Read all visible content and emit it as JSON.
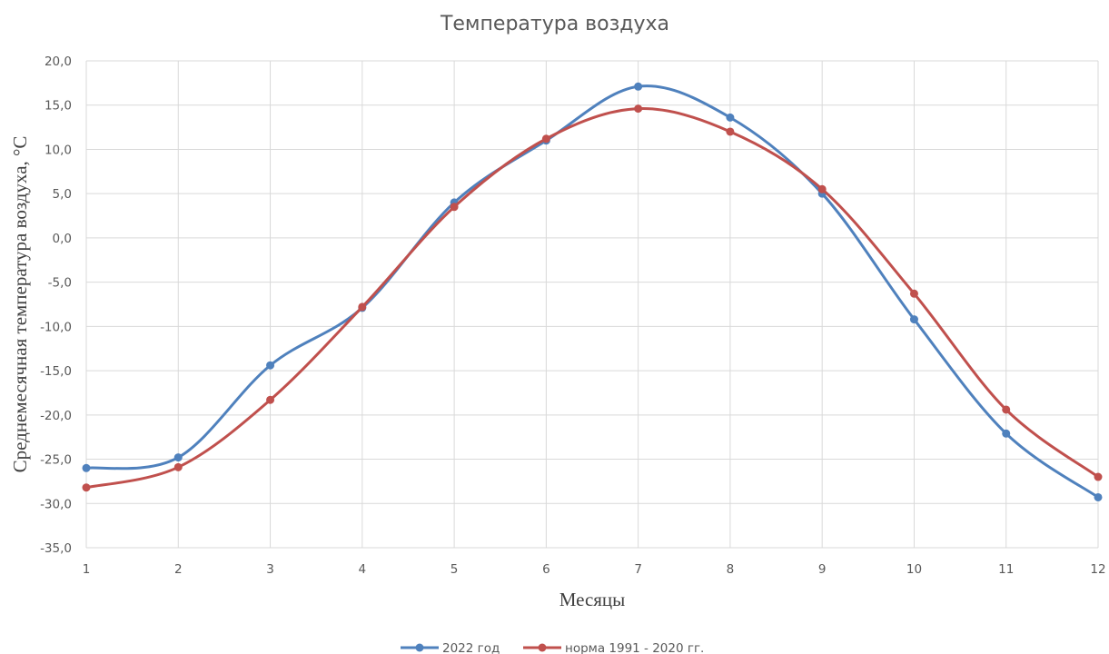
{
  "chart_data": {
    "type": "line",
    "title": "Температура воздуха",
    "xlabel": "Месяцы",
    "ylabel": "Среднемесячная температура воздуха, °С",
    "x": [
      1,
      2,
      3,
      4,
      5,
      6,
      7,
      8,
      9,
      10,
      11,
      12
    ],
    "x_tick_labels": [
      "1",
      "2",
      "3",
      "4",
      "5",
      "6",
      "7",
      "8",
      "9",
      "10",
      "11",
      "12"
    ],
    "ylim": [
      -35,
      20
    ],
    "y_ticks": [
      20,
      15,
      10,
      5,
      0,
      -5,
      -10,
      -15,
      -20,
      -25,
      -30,
      -35
    ],
    "y_tick_labels": [
      "20,0",
      "15,0",
      "10,0",
      "5,0",
      "0,0",
      "-5,0",
      "-10,0",
      "-15,0",
      "-20,0",
      "-25,0",
      "-30,0",
      "-35,0"
    ],
    "grid": true,
    "smoothed": true,
    "legend_position": "bottom",
    "series": [
      {
        "name": "2022 год",
        "color": "#4f81bd",
        "values": [
          -26.0,
          -24.8,
          -14.4,
          -7.9,
          4.0,
          11.0,
          17.1,
          13.6,
          5.0,
          -9.2,
          -22.1,
          -29.3
        ]
      },
      {
        "name": "норма 1991 - 2020 гг.",
        "color": "#c0504d",
        "values": [
          -28.2,
          -25.9,
          -18.3,
          -7.8,
          3.5,
          11.2,
          14.6,
          12.0,
          5.5,
          -6.3,
          -19.4,
          -27.0
        ]
      }
    ]
  }
}
